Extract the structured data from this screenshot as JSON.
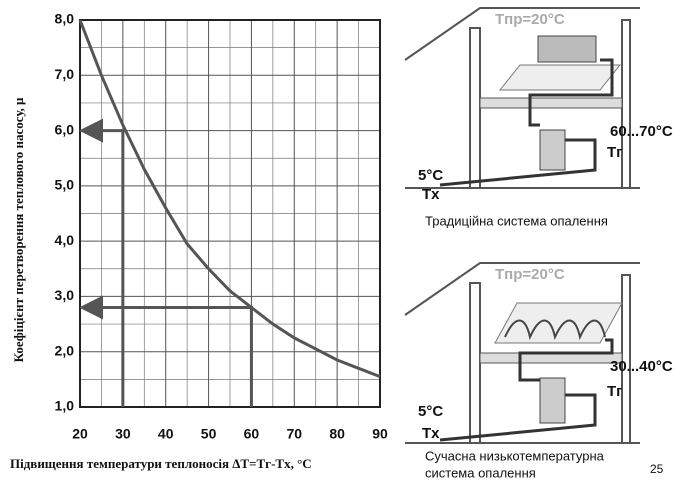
{
  "chart_data": {
    "type": "line",
    "y_label": "Коефіцієнт перетворення теплового насосу, μ",
    "x_label": "Підвищення температури теплоносія   ΔT=Tг-Tх, °C",
    "x": [
      20,
      25,
      30,
      35,
      40,
      45,
      50,
      55,
      60,
      65,
      70,
      75,
      80,
      85,
      90
    ],
    "series": [
      {
        "color": "#555555",
        "values": [
          8.0,
          7.0,
          6.1,
          5.3,
          4.6,
          3.95,
          3.5,
          3.1,
          2.8,
          2.5,
          2.25,
          2.05,
          1.85,
          1.7,
          1.55
        ]
      }
    ],
    "xlim": [
      20,
      90
    ],
    "ylim": [
      1.0,
      8.0
    ],
    "xticks": [
      20,
      30,
      40,
      50,
      60,
      70,
      80,
      90
    ],
    "yticks": [
      {
        "value": 1,
        "label": "1,0"
      },
      {
        "value": 2,
        "label": "2,0"
      },
      {
        "value": 3,
        "label": "3,0"
      },
      {
        "value": 4,
        "label": "4,0"
      },
      {
        "value": 5,
        "label": "5,0"
      },
      {
        "value": 6,
        "label": "6,0"
      },
      {
        "value": 7,
        "label": "7,0"
      },
      {
        "value": 8,
        "label": "8,0"
      }
    ],
    "grid": true,
    "minor_grid": true,
    "arrows": [
      {
        "x": 30,
        "y": 6.0
      },
      {
        "x": 60,
        "y": 2.8
      }
    ]
  },
  "diagrams": [
    {
      "room_temp": "Tпр=20°C",
      "supply_temp": "60...70°C",
      "supply_label": "Tг",
      "inlet_temp": "5°C",
      "return_label": "Tх",
      "caption": [
        "Традиційна система опалення"
      ]
    },
    {
      "room_temp": "Tпр=20°C",
      "supply_temp": "30...40°C",
      "supply_label": "Tг",
      "inlet_temp": "5°C",
      "return_label": "Tх",
      "caption": [
        "Сучасна низькотемпературна",
        "система опалення"
      ]
    }
  ],
  "page_number": "25"
}
